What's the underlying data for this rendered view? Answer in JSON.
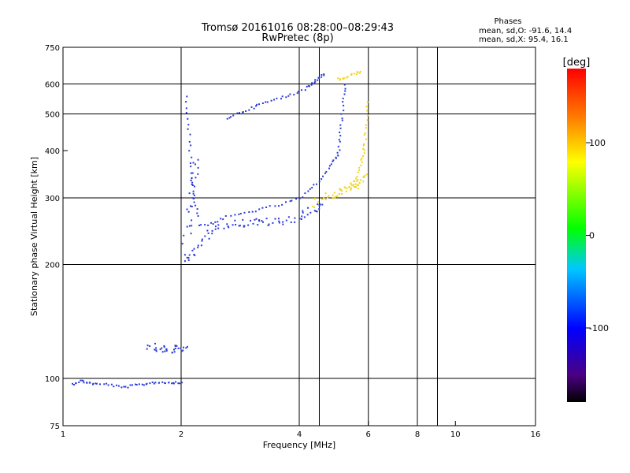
{
  "chart_data": {
    "type": "scatter",
    "title": "Tromsø 20161016 08:28:00–08:29:43",
    "subtitle": "RwPretec (8p)",
    "stats": {
      "heading": "Phases",
      "line1": "mean, sd,O: -91.6, 14.4",
      "line2": "mean, sd,X:  95.4, 16.1"
    },
    "xlabel": "Frequency [MHz]",
    "ylabel": "Stationary phase Virtual Height [km]",
    "x_scale": "log",
    "y_scale": "log",
    "xlim": [
      1,
      16
    ],
    "ylim": [
      75,
      750
    ],
    "x_ticks": [
      1,
      2,
      4,
      6,
      8,
      10,
      16
    ],
    "y_ticks": [
      75,
      100,
      200,
      300,
      400,
      500,
      600,
      750
    ],
    "x_gridlines": [
      2,
      4,
      4.5,
      6,
      8,
      9
    ],
    "y_gridlines": [
      100,
      200,
      300,
      500,
      600
    ],
    "grid": true,
    "colorbar": {
      "label": "[deg]",
      "range": [
        -180,
        180
      ],
      "ticks": [
        100,
        0,
        -100
      ]
    },
    "series": [
      {
        "mode": "O",
        "color": "#2a3ad8",
        "traces": [
          {
            "kind": "line",
            "pts": [
              [
                1.05,
                97
              ],
              [
                1.1,
                99
              ],
              [
                1.15,
                98
              ],
              [
                1.2,
                97
              ],
              [
                1.3,
                97
              ],
              [
                1.4,
                95
              ],
              [
                1.5,
                96
              ],
              [
                1.6,
                97
              ],
              [
                1.7,
                98
              ],
              [
                1.8,
                98
              ],
              [
                1.9,
                98
              ],
              [
                2.0,
                98
              ]
            ]
          },
          {
            "kind": "band",
            "pts": [
              [
                1.65,
                122
              ],
              [
                1.75,
                121
              ],
              [
                1.85,
                119
              ],
              [
                1.95,
                120
              ],
              [
                2.05,
                121
              ]
            ]
          },
          {
            "kind": "band",
            "pts": [
              [
                2.05,
                210
              ],
              [
                2.15,
                215
              ],
              [
                2.3,
                240
              ],
              [
                2.5,
                256
              ],
              [
                2.8,
                258
              ],
              [
                3.0,
                260
              ],
              [
                3.3,
                260
              ],
              [
                3.6,
                261
              ],
              [
                4.0,
                268
              ],
              [
                4.3,
                280
              ],
              [
                4.5,
                290
              ]
            ]
          },
          {
            "kind": "band",
            "pts": [
              [
                2.05,
                230
              ],
              [
                2.1,
                280
              ],
              [
                2.15,
                330
              ],
              [
                2.2,
                380
              ]
            ]
          },
          {
            "kind": "line",
            "pts": [
              [
                2.05,
                560
              ],
              [
                2.08,
                470
              ],
              [
                2.1,
                400
              ],
              [
                2.12,
                340
              ],
              [
                2.15,
                300
              ],
              [
                2.2,
                270
              ]
            ]
          },
          {
            "kind": "line",
            "pts": [
              [
                2.2,
                255
              ],
              [
                2.4,
                258
              ],
              [
                2.6,
                268
              ],
              [
                2.9,
                275
              ],
              [
                3.2,
                282
              ],
              [
                3.6,
                290
              ],
              [
                4.0,
                300
              ],
              [
                4.3,
                320
              ],
              [
                4.6,
                345
              ],
              [
                4.8,
                370
              ],
              [
                5.0,
                390
              ]
            ]
          },
          {
            "kind": "line",
            "pts": [
              [
                2.6,
                490
              ],
              [
                2.8,
                505
              ],
              [
                3.0,
                520
              ],
              [
                3.2,
                535
              ],
              [
                3.5,
                550
              ],
              [
                3.8,
                565
              ],
              [
                4.1,
                585
              ],
              [
                4.3,
                605
              ],
              [
                4.45,
                625
              ],
              [
                4.6,
                640
              ]
            ]
          },
          {
            "kind": "line",
            "pts": [
              [
                5.0,
                390
              ],
              [
                5.05,
                430
              ],
              [
                5.1,
                480
              ],
              [
                5.15,
                540
              ],
              [
                5.2,
                600
              ]
            ]
          }
        ]
      },
      {
        "mode": "X",
        "color": "#f2d21a",
        "traces": [
          {
            "kind": "band",
            "pts": [
              [
                4.3,
                290
              ],
              [
                4.6,
                300
              ],
              [
                4.9,
                308
              ],
              [
                5.2,
                315
              ],
              [
                5.5,
                322
              ],
              [
                5.7,
                330
              ],
              [
                5.85,
                345
              ]
            ]
          },
          {
            "kind": "line",
            "pts": [
              [
                5.3,
                320
              ],
              [
                5.5,
                335
              ],
              [
                5.7,
                360
              ],
              [
                5.8,
                390
              ],
              [
                5.85,
                420
              ],
              [
                5.9,
                470
              ],
              [
                5.95,
                540
              ]
            ]
          },
          {
            "kind": "line",
            "pts": [
              [
                5.0,
                620
              ],
              [
                5.2,
                625
              ],
              [
                5.5,
                640
              ],
              [
                5.7,
                650
              ]
            ]
          }
        ]
      }
    ]
  }
}
